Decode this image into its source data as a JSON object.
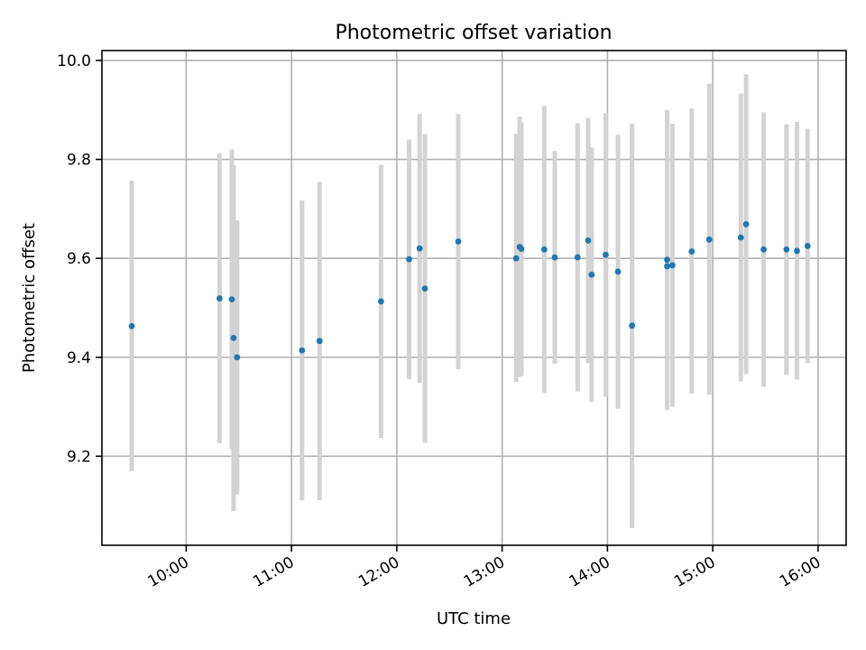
{
  "chart_data": {
    "type": "scatter",
    "title": "Photometric offset variation",
    "xlabel": "UTC time",
    "ylabel": "Photometric offset",
    "xlim": [
      "09:12",
      "16:16"
    ],
    "ylim": [
      9.02,
      10.02
    ],
    "xticks": [
      "10:00",
      "11:00",
      "12:00",
      "13:00",
      "14:00",
      "15:00",
      "16:00"
    ],
    "yticks": [
      9.2,
      9.4,
      9.6,
      9.8,
      10.0
    ],
    "ytick_labels": [
      "9.2",
      "9.4",
      "9.6",
      "9.8",
      "10.0"
    ],
    "grid": true,
    "point_color": "#1f77b4",
    "errorbar_color": "#d3d3d3",
    "points": [
      {
        "x": "09:29",
        "y": 9.463,
        "yerr_low": 9.17,
        "yerr_high": 9.757
      },
      {
        "x": "10:19",
        "y": 9.519,
        "yerr_low": 9.226,
        "yerr_high": 9.812
      },
      {
        "x": "10:26",
        "y": 9.517,
        "yerr_low": 9.214,
        "yerr_high": 9.82
      },
      {
        "x": "10:27",
        "y": 9.439,
        "yerr_low": 9.089,
        "yerr_high": 9.789
      },
      {
        "x": "10:29",
        "y": 9.4,
        "yerr_low": 9.123,
        "yerr_high": 9.677
      },
      {
        "x": "11:06",
        "y": 9.414,
        "yerr_low": 9.111,
        "yerr_high": 9.717
      },
      {
        "x": "11:16",
        "y": 9.433,
        "yerr_low": 9.111,
        "yerr_high": 9.755
      },
      {
        "x": "11:51",
        "y": 9.513,
        "yerr_low": 9.237,
        "yerr_high": 9.789
      },
      {
        "x": "12:07",
        "y": 9.598,
        "yerr_low": 9.356,
        "yerr_high": 9.84
      },
      {
        "x": "12:13",
        "y": 9.62,
        "yerr_low": 9.348,
        "yerr_high": 9.892
      },
      {
        "x": "12:16",
        "y": 9.539,
        "yerr_low": 9.227,
        "yerr_high": 9.851
      },
      {
        "x": "12:35",
        "y": 9.634,
        "yerr_low": 9.376,
        "yerr_high": 9.892
      },
      {
        "x": "13:08",
        "y": 9.6,
        "yerr_low": 9.35,
        "yerr_high": 9.852
      },
      {
        "x": "13:10",
        "y": 9.623,
        "yerr_low": 9.36,
        "yerr_high": 9.887
      },
      {
        "x": "13:11",
        "y": 9.619,
        "yerr_low": 9.363,
        "yerr_high": 9.875
      },
      {
        "x": "13:24",
        "y": 9.618,
        "yerr_low": 9.328,
        "yerr_high": 9.908
      },
      {
        "x": "13:30",
        "y": 9.602,
        "yerr_low": 9.387,
        "yerr_high": 9.817
      },
      {
        "x": "13:43",
        "y": 9.602,
        "yerr_low": 9.331,
        "yerr_high": 9.873
      },
      {
        "x": "13:49",
        "y": 9.636,
        "yerr_low": 9.388,
        "yerr_high": 9.884
      },
      {
        "x": "13:51",
        "y": 9.567,
        "yerr_low": 9.31,
        "yerr_high": 9.824
      },
      {
        "x": "13:59",
        "y": 9.607,
        "yerr_low": 9.32,
        "yerr_high": 9.894
      },
      {
        "x": "14:06",
        "y": 9.573,
        "yerr_low": 9.296,
        "yerr_high": 9.85
      },
      {
        "x": "14:14",
        "y": 9.464,
        "yerr_low": 9.055,
        "yerr_high": 9.872
      },
      {
        "x": "14:34",
        "y": 9.597,
        "yerr_low": 9.293,
        "yerr_high": 9.9
      },
      {
        "x": "14:34",
        "y": 9.584,
        "yerr_low": 9.295,
        "yerr_high": 9.874
      },
      {
        "x": "14:37",
        "y": 9.586,
        "yerr_low": 9.3,
        "yerr_high": 9.872
      },
      {
        "x": "14:48",
        "y": 9.614,
        "yerr_low": 9.326,
        "yerr_high": 9.903
      },
      {
        "x": "14:58",
        "y": 9.638,
        "yerr_low": 9.324,
        "yerr_high": 9.953
      },
      {
        "x": "15:16",
        "y": 9.642,
        "yerr_low": 9.351,
        "yerr_high": 9.933
      },
      {
        "x": "15:19",
        "y": 9.669,
        "yerr_low": 9.366,
        "yerr_high": 9.972
      },
      {
        "x": "15:29",
        "y": 9.618,
        "yerr_low": 9.34,
        "yerr_high": 9.895
      },
      {
        "x": "15:42",
        "y": 9.618,
        "yerr_low": 9.364,
        "yerr_high": 9.871
      },
      {
        "x": "15:48",
        "y": 9.615,
        "yerr_low": 9.355,
        "yerr_high": 9.876
      },
      {
        "x": "15:54",
        "y": 9.625,
        "yerr_low": 9.388,
        "yerr_high": 9.862
      }
    ]
  }
}
